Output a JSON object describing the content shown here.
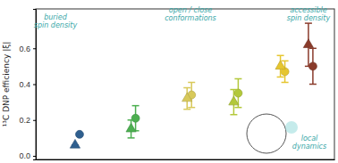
{
  "chart_data": {
    "type": "scatter",
    "y_label": "¹³C DNP efficiency |ξ|",
    "x": [
      1,
      2.2,
      3.4,
      4.4,
      5.4,
      6
    ],
    "xlim": [
      0.1,
      6.5
    ],
    "xticks": [],
    "ylim": [
      -0.02,
      0.82
    ],
    "yticks": [
      {
        "value": 0,
        "label": "0.0"
      },
      {
        "value": 0.2,
        "label": "0.2"
      },
      {
        "value": 0.4,
        "label": "0.4"
      },
      {
        "value": 0.6,
        "label": "0.6"
      }
    ],
    "tick_labels": "y",
    "series": [
      {
        "marker": "circle",
        "colors": [
          "#2f5f8f",
          "#4caf50",
          "#d8c95a",
          "#b3c83a",
          "#e6c62f",
          "#8a3b2b"
        ],
        "values": [
          0.12,
          0.21,
          0.34,
          0.35,
          0.47,
          0.5
        ],
        "errors": [
          0,
          0.07,
          0.07,
          0.08,
          0.06,
          0.1
        ]
      },
      {
        "marker": "triangle",
        "colors": [
          "#2f5f8f",
          "#4caf50",
          "#d8c95a",
          "#b3c83a",
          "#e6c62f",
          "#8a3b2b"
        ],
        "values": [
          0.06,
          0.15,
          0.32,
          0.3,
          0.5,
          0.62
        ],
        "errors": [
          0,
          0.05,
          0.06,
          0.07,
          0.06,
          0.12
        ]
      }
    ],
    "annotations": [
      "buried\nspin density",
      "open / close\nconformations",
      "accessible\nspin density",
      "local\ndynamics"
    ]
  }
}
